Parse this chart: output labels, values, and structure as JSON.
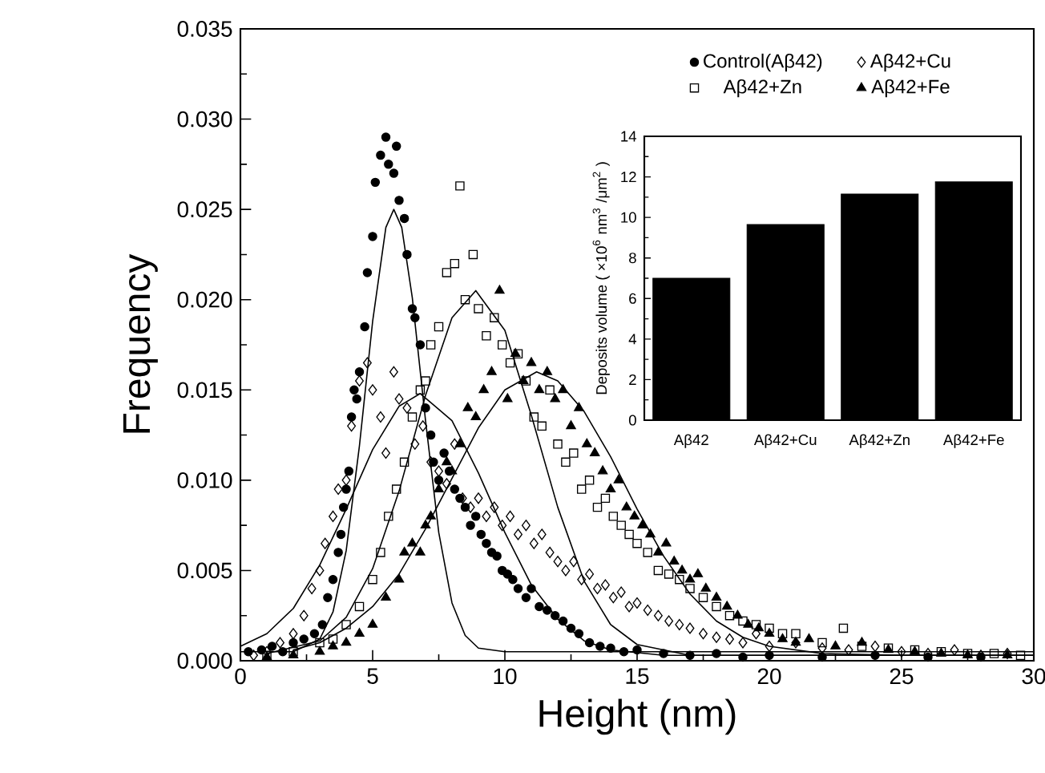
{
  "chart_data": [
    {
      "type": "scatter",
      "xlabel": "Height (nm)",
      "ylabel": "Frequency",
      "xlim": [
        0,
        30
      ],
      "ylim": [
        0,
        0.035
      ],
      "xticks": [
        0,
        5,
        10,
        15,
        20,
        25,
        30
      ],
      "yticks": [
        {
          "value": 0,
          "label": "0.000"
        },
        {
          "value": 0.005,
          "label": "0.005"
        },
        {
          "value": 0.01,
          "label": "0.010"
        },
        {
          "value": 0.015,
          "label": "0.015"
        },
        {
          "value": 0.02,
          "label": "0.020"
        },
        {
          "value": 0.025,
          "label": "0.025"
        },
        {
          "value": 0.03,
          "label": "0.030"
        },
        {
          "value": 0.035,
          "label": "0.035"
        }
      ],
      "legend": "top right",
      "series": [
        {
          "name": "Control(Aβ42)",
          "color": "#000000",
          "marker": "circle",
          "x": [
            0.3,
            0.8,
            1.2,
            1.6,
            2.0,
            2.4,
            2.8,
            3.1,
            3.3,
            3.5,
            3.7,
            3.8,
            3.9,
            4.0,
            4.1,
            4.2,
            4.3,
            4.4,
            4.5,
            4.7,
            4.8,
            5.0,
            5.1,
            5.3,
            5.5,
            5.6,
            5.8,
            5.9,
            6.0,
            6.2,
            6.3,
            6.5,
            6.6,
            6.8,
            7.0,
            7.2,
            7.3,
            7.5,
            7.7,
            7.9,
            8.1,
            8.3,
            8.5,
            8.7,
            8.9,
            9.1,
            9.3,
            9.5,
            9.7,
            9.9,
            10.1,
            10.3,
            10.5,
            10.8,
            11.0,
            11.3,
            11.6,
            11.9,
            12.2,
            12.5,
            12.8,
            13.2,
            13.6,
            14.0,
            14.5,
            15.0,
            16,
            17,
            18,
            19,
            20,
            22,
            24,
            26,
            28
          ],
          "values": [
            0.0005,
            0.0006,
            0.0008,
            0.0005,
            0.001,
            0.0012,
            0.0015,
            0.002,
            0.0035,
            0.0045,
            0.006,
            0.007,
            0.0085,
            0.0095,
            0.0105,
            0.0135,
            0.015,
            0.0145,
            0.016,
            0.0185,
            0.0215,
            0.0235,
            0.0265,
            0.028,
            0.029,
            0.0275,
            0.027,
            0.0285,
            0.0255,
            0.0245,
            0.0225,
            0.0195,
            0.019,
            0.0175,
            0.014,
            0.0125,
            0.011,
            0.01,
            0.0115,
            0.0105,
            0.0095,
            0.009,
            0.0085,
            0.0075,
            0.008,
            0.007,
            0.0065,
            0.006,
            0.0058,
            0.005,
            0.0048,
            0.0045,
            0.004,
            0.0035,
            0.004,
            0.003,
            0.0028,
            0.0025,
            0.0022,
            0.0018,
            0.0015,
            0.001,
            0.0008,
            0.0007,
            0.0005,
            0.0006,
            0.0004,
            0.0003,
            0.0004,
            0.0002,
            0.0003,
            0.0002,
            0.0003,
            0.0002,
            0.0002
          ]
        },
        {
          "name": "Aβ42+Cu",
          "color": "#000000",
          "marker": "diamond",
          "x": [
            0.5,
            1.0,
            1.5,
            2.0,
            2.4,
            2.7,
            3.0,
            3.2,
            3.5,
            3.7,
            4.0,
            4.2,
            4.5,
            4.8,
            5.0,
            5.3,
            5.5,
            5.8,
            6.0,
            6.3,
            6.6,
            6.9,
            7.2,
            7.5,
            7.8,
            8.1,
            8.4,
            8.7,
            9.0,
            9.3,
            9.6,
            9.9,
            10.2,
            10.5,
            10.8,
            11.1,
            11.4,
            11.7,
            12.0,
            12.3,
            12.6,
            12.9,
            13.2,
            13.5,
            13.8,
            14.1,
            14.4,
            14.7,
            15.0,
            15.4,
            15.8,
            16.2,
            16.6,
            17.0,
            17.5,
            18.0,
            18.5,
            19.0,
            19.5,
            20.0,
            21.0,
            22.0,
            23.0,
            24.0,
            25.0,
            26.0,
            27.0,
            28.0,
            29.0
          ],
          "values": [
            0.0003,
            0.0005,
            0.001,
            0.0015,
            0.0025,
            0.004,
            0.005,
            0.0065,
            0.008,
            0.0095,
            0.01,
            0.013,
            0.0155,
            0.0165,
            0.015,
            0.0135,
            0.0115,
            0.016,
            0.0145,
            0.014,
            0.012,
            0.013,
            0.011,
            0.0105,
            0.0098,
            0.012,
            0.009,
            0.0085,
            0.009,
            0.008,
            0.0085,
            0.0075,
            0.008,
            0.007,
            0.0075,
            0.0065,
            0.007,
            0.006,
            0.0055,
            0.005,
            0.0055,
            0.0045,
            0.0048,
            0.004,
            0.0042,
            0.0035,
            0.0038,
            0.003,
            0.0032,
            0.0028,
            0.0025,
            0.0022,
            0.002,
            0.0018,
            0.0015,
            0.0013,
            0.0012,
            0.001,
            0.0015,
            0.0008,
            0.001,
            0.0007,
            0.0006,
            0.0008,
            0.0005,
            0.0004,
            0.0006,
            0.0003,
            0.0004
          ]
        },
        {
          "name": "Aβ42+Zn",
          "color": "#000000",
          "marker": "square",
          "x": [
            1.0,
            2.0,
            3.0,
            3.5,
            4.0,
            4.5,
            5.0,
            5.3,
            5.6,
            5.9,
            6.2,
            6.5,
            6.8,
            7.0,
            7.2,
            7.5,
            7.8,
            8.1,
            8.3,
            8.5,
            8.8,
            9.0,
            9.3,
            9.6,
            9.9,
            10.2,
            10.5,
            10.8,
            11.1,
            11.4,
            11.7,
            12.0,
            12.3,
            12.6,
            12.9,
            13.2,
            13.5,
            13.8,
            14.1,
            14.4,
            14.7,
            15.0,
            15.4,
            15.8,
            16.2,
            16.6,
            17.0,
            17.5,
            18.0,
            18.5,
            19.0,
            19.5,
            20.0,
            20.5,
            21.0,
            22.0,
            22.8,
            23.5,
            24.5,
            25.5,
            26.5,
            27.5,
            28.5,
            29.5
          ],
          "values": [
            0.0003,
            0.0005,
            0.001,
            0.0012,
            0.002,
            0.003,
            0.0045,
            0.006,
            0.008,
            0.0095,
            0.011,
            0.0135,
            0.015,
            0.0155,
            0.0175,
            0.0185,
            0.0215,
            0.022,
            0.0263,
            0.02,
            0.0225,
            0.0195,
            0.018,
            0.019,
            0.0175,
            0.0165,
            0.017,
            0.0155,
            0.0135,
            0.013,
            0.015,
            0.012,
            0.011,
            0.0115,
            0.0095,
            0.01,
            0.0085,
            0.009,
            0.008,
            0.0075,
            0.007,
            0.0065,
            0.006,
            0.005,
            0.0048,
            0.0045,
            0.004,
            0.0035,
            0.003,
            0.0025,
            0.0022,
            0.002,
            0.0018,
            0.0015,
            0.0015,
            0.001,
            0.0018,
            0.0008,
            0.0007,
            0.0006,
            0.0005,
            0.0004,
            0.0004,
            0.0003
          ]
        },
        {
          "name": "Aβ42+Fe",
          "color": "#000000",
          "marker": "triangle",
          "x": [
            1.0,
            2.0,
            3.0,
            3.5,
            4.0,
            4.5,
            5.0,
            5.5,
            6.0,
            6.2,
            6.5,
            6.8,
            7.0,
            7.2,
            7.5,
            7.8,
            8.0,
            8.3,
            8.6,
            8.9,
            9.2,
            9.5,
            9.8,
            10.1,
            10.4,
            10.7,
            11.0,
            11.3,
            11.6,
            11.9,
            12.2,
            12.5,
            12.8,
            13.1,
            13.4,
            13.7,
            14.0,
            14.3,
            14.6,
            14.9,
            15.2,
            15.5,
            15.8,
            16.1,
            16.4,
            16.7,
            17.0,
            17.3,
            17.6,
            18.0,
            18.4,
            18.8,
            19.2,
            19.6,
            20.0,
            20.5,
            21.0,
            21.5,
            22.5,
            23.5,
            24.5,
            25.5,
            26.5,
            27.5,
            29.0
          ],
          "values": [
            0.0002,
            0.0003,
            0.0005,
            0.0008,
            0.001,
            0.0015,
            0.002,
            0.0035,
            0.0045,
            0.006,
            0.0065,
            0.006,
            0.0075,
            0.008,
            0.0095,
            0.011,
            0.0105,
            0.012,
            0.014,
            0.0135,
            0.015,
            0.016,
            0.0205,
            0.0145,
            0.017,
            0.0155,
            0.0165,
            0.015,
            0.016,
            0.0145,
            0.015,
            0.013,
            0.014,
            0.012,
            0.0115,
            0.0105,
            0.0095,
            0.01,
            0.0085,
            0.008,
            0.0075,
            0.007,
            0.006,
            0.0065,
            0.0055,
            0.005,
            0.0045,
            0.0048,
            0.004,
            0.0035,
            0.003,
            0.0025,
            0.002,
            0.0018,
            0.0015,
            0.0012,
            0.001,
            0.0012,
            0.0008,
            0.001,
            0.0006,
            0.0005,
            0.0004,
            0.0003,
            0.0003
          ]
        },
        {
          "type": "line",
          "color": "#000000",
          "x": [
            0,
            2,
            3,
            3.5,
            4,
            4.5,
            5,
            5.5,
            5.8,
            6.1,
            6.5,
            7,
            7.5,
            8,
            8.5,
            9,
            10,
            30
          ],
          "values": [
            0.0005,
            0.0005,
            0.0012,
            0.0027,
            0.0061,
            0.0119,
            0.0188,
            0.024,
            0.025,
            0.024,
            0.0201,
            0.0133,
            0.0071,
            0.0032,
            0.0014,
            0.0007,
            0.0005,
            0.0005
          ]
        },
        {
          "type": "line",
          "color": "#000000",
          "x": [
            0,
            1,
            2,
            3,
            4,
            5,
            6,
            6.8,
            8,
            9,
            10,
            11,
            12,
            13,
            14,
            16,
            30
          ],
          "values": [
            0.0008,
            0.0015,
            0.0029,
            0.0053,
            0.0084,
            0.0117,
            0.0141,
            0.0148,
            0.0133,
            0.0104,
            0.0071,
            0.0042,
            0.0023,
            0.0011,
            0.0006,
            0.0003,
            0.0003
          ]
        },
        {
          "type": "line",
          "color": "#000000",
          "x": [
            1,
            3,
            4,
            5,
            6,
            7,
            8,
            8.9,
            10,
            11,
            12,
            13,
            14,
            15,
            17,
            30
          ],
          "values": [
            0.0004,
            0.0011,
            0.0024,
            0.0051,
            0.0094,
            0.0147,
            0.019,
            0.0205,
            0.0183,
            0.0136,
            0.0085,
            0.0044,
            0.002,
            0.0009,
            0.0003,
            0.0003
          ]
        },
        {
          "type": "line",
          "color": "#000000",
          "x": [
            2,
            3,
            4,
            5,
            6,
            7,
            8,
            9,
            10,
            11.2,
            12,
            13,
            14,
            15,
            16,
            17,
            18,
            19,
            20,
            22,
            25,
            30
          ],
          "values": [
            0.0006,
            0.001,
            0.0018,
            0.003,
            0.0048,
            0.0073,
            0.0101,
            0.0129,
            0.015,
            0.016,
            0.0155,
            0.0138,
            0.0113,
            0.0084,
            0.0058,
            0.0037,
            0.0022,
            0.0013,
            0.0008,
            0.0004,
            0.0003,
            0.0003
          ]
        }
      ]
    },
    {
      "type": "bar",
      "categories": [
        "Aβ42",
        "Aβ42+Cu",
        "Aβ42+Zn",
        "Aβ42+Fe"
      ],
      "values": [
        7.0,
        9.65,
        11.15,
        11.75
      ],
      "color": "#000000",
      "ylabel": "Deposits volume ( ×10$^{6}$ nm$^{3}$ /μm$^{2}$ )",
      "ylim": [
        0,
        14
      ],
      "yticks": [
        0,
        2,
        4,
        6,
        8,
        10,
        12,
        14
      ]
    }
  ]
}
